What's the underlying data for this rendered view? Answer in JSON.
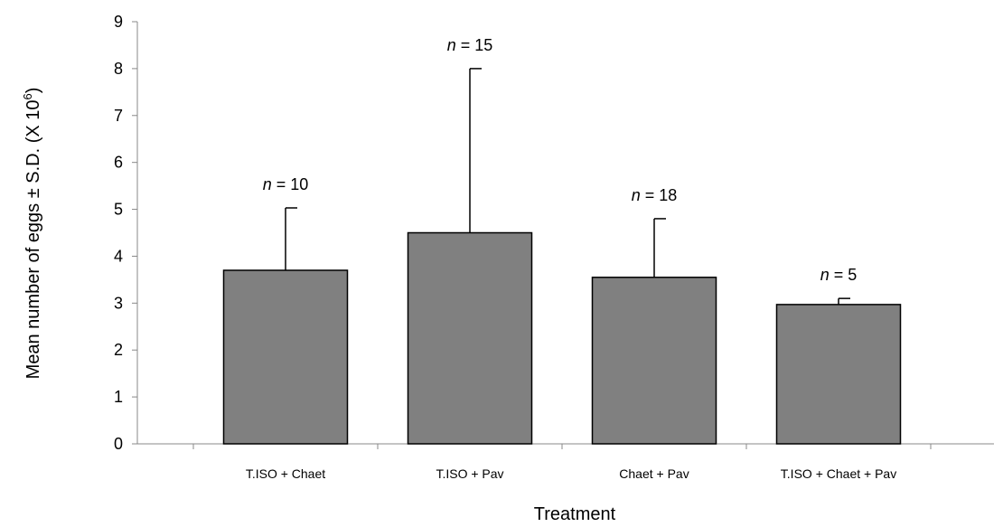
{
  "chart_data": {
    "type": "bar",
    "categories": [
      "T.ISO + Chaet",
      "T.ISO + Pav",
      "Chaet + Pav",
      "T.ISO + Chaet + Pav"
    ],
    "values": [
      3.7,
      4.5,
      3.55,
      2.97
    ],
    "error_plus": [
      1.33,
      3.5,
      1.25,
      0.13
    ],
    "annotations": [
      {
        "prefix": "n",
        "text": " = 10"
      },
      {
        "prefix": "n",
        "text": " = 15"
      },
      {
        "prefix": "n",
        "text": " = 18"
      },
      {
        "prefix": "n",
        "text": " = 5"
      }
    ],
    "xlabel": "Treatment",
    "ylabel": "Mean number of eggs ± S.D. (X 10",
    "ylabel_superscript": "6",
    "ylabel_suffix": ")",
    "ylim": [
      0,
      9
    ],
    "yticks": [
      0,
      1,
      2,
      3,
      4,
      5,
      6,
      7,
      8,
      9
    ],
    "bar_color": "#808080",
    "grid": false,
    "legend": "none"
  }
}
